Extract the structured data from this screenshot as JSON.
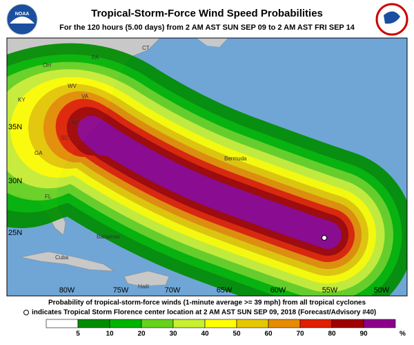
{
  "header": {
    "title": "Tropical-Storm-Force Wind Speed Probabilities",
    "subtitle": "For the 120 hours (5.00 days) from 2 AM AST SUN SEP 09 to 2 AM AST FRI SEP 14",
    "logo_left": "NOAA"
  },
  "map": {
    "lat_labels": [
      "35N",
      "30N",
      "25N"
    ],
    "lon_labels": [
      "80W",
      "75W",
      "70W",
      "65W",
      "60W",
      "55W",
      "50W"
    ],
    "places": [
      "OH",
      "PA",
      "CT",
      "WV",
      "VA",
      "KY",
      "NC",
      "SC",
      "GA",
      "FL",
      "Bahamas",
      "Cuba",
      "Bermuda",
      "Haiti"
    ]
  },
  "footer": {
    "line1": "Probability of tropical-storm-force winds (1-minute average >= 39 mph) from all tropical cyclones",
    "line2": "indicates Tropical Storm Florence center location at 2 AM AST SUN SEP 09, 2018 (Forecast/Advisory #40)"
  },
  "legend": {
    "ticks": [
      5,
      10,
      20,
      30,
      40,
      50,
      60,
      70,
      80,
      90
    ],
    "unit": "%",
    "colors": [
      "#ffffff",
      "#008c00",
      "#00b400",
      "#66d21e",
      "#c8f032",
      "#ffff00",
      "#e6c800",
      "#e68c00",
      "#e01e00",
      "#a00000",
      "#8c008c"
    ]
  }
}
